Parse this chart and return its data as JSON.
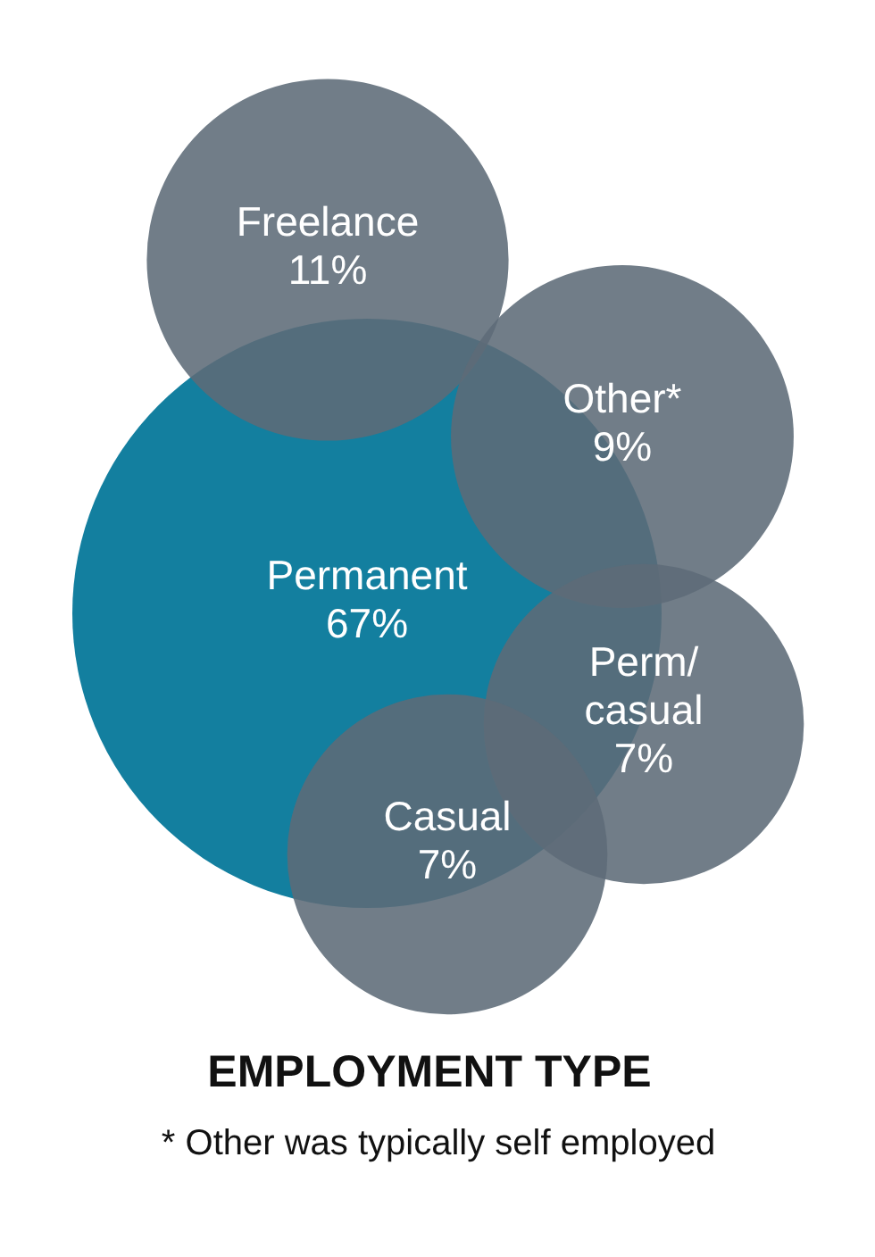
{
  "chart_data": {
    "type": "other",
    "title": "EMPLOYMENT TYPE",
    "categories": [
      "Permanent",
      "Freelance",
      "Other*",
      "Perm/casual",
      "Casual"
    ],
    "values": [
      67,
      11,
      9,
      7,
      7
    ],
    "value_labels": [
      "67%",
      "11%",
      "9%",
      "7%",
      "7%"
    ],
    "colors": [
      "#137f9f",
      "#5d6b78",
      "#5d6b78",
      "#5d6b78",
      "#5d6b78"
    ],
    "annotations": [
      "* Other was typically self employed"
    ]
  }
}
